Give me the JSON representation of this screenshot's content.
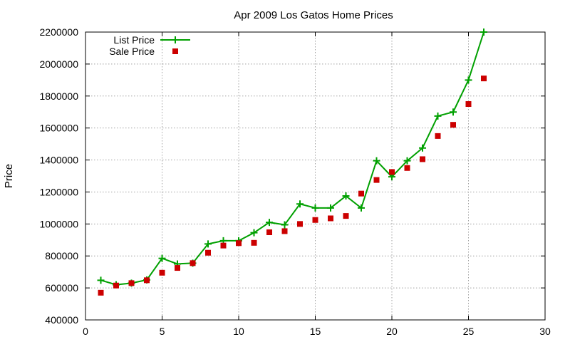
{
  "chart_data": {
    "type": "line",
    "title": "Apr 2009 Los Gatos Home Prices",
    "xlabel": "",
    "ylabel": "Price",
    "xlim": [
      0,
      30
    ],
    "ylim": [
      400000,
      2200000
    ],
    "x_ticks": [
      "0",
      "5",
      "10",
      "15",
      "20",
      "25",
      "30"
    ],
    "x_tick_values": [
      0,
      5,
      10,
      15,
      20,
      25,
      30
    ],
    "y_ticks": [
      "400000",
      "600000",
      "800000",
      "1000000",
      "1200000",
      "1400000",
      "1600000",
      "1800000",
      "2000000",
      "2200000"
    ],
    "y_tick_values": [
      400000,
      600000,
      800000,
      1000000,
      1200000,
      1400000,
      1600000,
      1800000,
      2000000,
      2200000
    ],
    "grid": true,
    "legend_position": "top-left",
    "x": [
      1,
      2,
      3,
      4,
      5,
      6,
      7,
      8,
      9,
      10,
      11,
      12,
      13,
      14,
      15,
      16,
      17,
      18,
      19,
      20,
      21,
      22,
      23,
      24,
      25,
      26
    ],
    "series": [
      {
        "name": "List Price",
        "style": "line-plus",
        "color": "#00a000",
        "values": [
          648000,
          620000,
          630000,
          650000,
          785000,
          750000,
          755000,
          875000,
          895000,
          895000,
          945000,
          1010000,
          995000,
          1125000,
          1100000,
          1100000,
          1175000,
          1100000,
          1395000,
          1295000,
          1395000,
          1475000,
          1675000,
          1700000,
          1900000,
          2200000
        ]
      },
      {
        "name": "Sale Price",
        "style": "square",
        "color": "#cc0000",
        "values": [
          570000,
          615000,
          630000,
          648000,
          695000,
          725000,
          755000,
          820000,
          865000,
          880000,
          882000,
          948000,
          955000,
          1000000,
          1025000,
          1035000,
          1050000,
          1190000,
          1275000,
          1325000,
          1350000,
          1405000,
          1550000,
          1620000,
          1750000,
          1910000
        ]
      }
    ]
  }
}
